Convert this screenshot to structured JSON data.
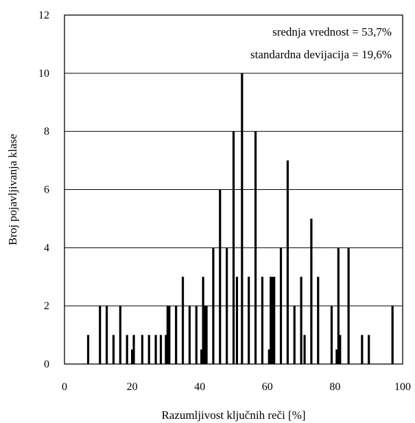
{
  "chart_data": {
    "type": "bar",
    "title": "",
    "xlabel": "Razumljivost ključnih reči [%]",
    "ylabel": "Broj pojavljivanja klase",
    "xlim": [
      0,
      100
    ],
    "ylim": [
      0,
      12
    ],
    "x_ticks": [
      0,
      20,
      40,
      60,
      80,
      100
    ],
    "y_ticks": [
      0,
      2,
      4,
      6,
      8,
      10,
      12
    ],
    "grid": "horizontal",
    "annotations": [
      "srednja vrednost = 53,7%",
      "standardna devijacija = 19,6%"
    ],
    "bar_color": "#000000",
    "series": [
      {
        "x": [
          7,
          10.5,
          12.5,
          14.5,
          16.5,
          18.5,
          20,
          20.5,
          23,
          25,
          27,
          28.5,
          30,
          30.5,
          31,
          33,
          35,
          37,
          39,
          40.5,
          41,
          41.5,
          42,
          44,
          46,
          48,
          50,
          51,
          52.5,
          54.5,
          56.5,
          58.5,
          60.5,
          61,
          61.5,
          62,
          64,
          66,
          68,
          70,
          71,
          73,
          75,
          79,
          80.5,
          81,
          81.5,
          84,
          88,
          90,
          97
        ],
        "values": [
          1,
          2,
          2,
          1,
          2,
          1,
          0.5,
          1,
          1,
          1,
          1,
          1,
          1,
          2,
          2,
          2,
          3,
          2,
          2,
          0.5,
          3,
          2,
          2,
          4,
          6,
          4,
          8,
          3,
          10,
          3,
          8,
          3,
          0.5,
          3,
          3,
          3,
          4,
          7,
          2,
          3,
          1,
          5,
          3,
          2,
          0.5,
          4,
          1,
          4,
          1,
          1,
          2
        ]
      }
    ]
  }
}
